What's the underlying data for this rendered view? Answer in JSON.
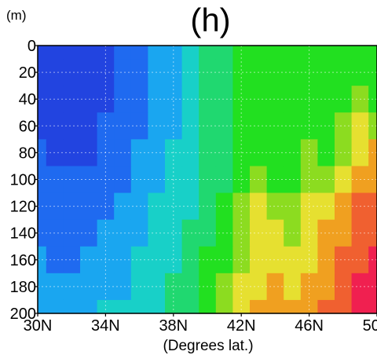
{
  "chart_data": {
    "type": "heatmap",
    "title": "(h)",
    "unit_label": "(m)",
    "xlabel": "(Degrees lat.)",
    "ylabel": "",
    "x_ticks": [
      "30N",
      "34N",
      "38N",
      "42N",
      "46N",
      "50N"
    ],
    "x_tick_values": [
      30,
      34,
      38,
      42,
      46,
      50
    ],
    "y_ticks": [
      "0",
      "20",
      "40",
      "60",
      "80",
      "100",
      "120",
      "140",
      "160",
      "180",
      "200"
    ],
    "y_tick_values": [
      0,
      20,
      40,
      60,
      80,
      100,
      120,
      140,
      160,
      180,
      200
    ],
    "xlim": [
      30,
      50
    ],
    "ylim": [
      0,
      200
    ],
    "y_inverted": true,
    "grid": true,
    "palette": [
      "#2244e0",
      "#1f6af0",
      "#1aa6f0",
      "#18d0c8",
      "#20d870",
      "#22e020",
      "#8cdc20",
      "#e6e030",
      "#f0a020",
      "#f06030",
      "#f02050"
    ],
    "x": [
      30,
      31,
      32,
      33,
      34,
      35,
      36,
      37,
      38,
      39,
      40,
      41,
      42,
      43,
      44,
      45,
      46,
      47,
      48,
      49,
      50
    ],
    "depth": [
      0,
      20,
      40,
      60,
      80,
      100,
      120,
      140,
      160,
      180,
      200
    ],
    "values": [
      [
        0,
        0,
        0,
        0,
        0,
        1,
        1,
        2,
        2,
        3,
        4,
        4,
        5,
        5,
        5,
        5,
        5,
        5,
        5,
        5,
        5
      ],
      [
        0,
        0,
        0,
        0,
        0,
        1,
        1,
        2,
        2,
        3,
        4,
        4,
        5,
        5,
        5,
        5,
        5,
        5,
        5,
        5,
        5
      ],
      [
        0,
        0,
        0,
        0,
        0,
        1,
        1,
        2,
        2,
        3,
        4,
        4,
        5,
        5,
        5,
        5,
        5,
        5,
        5,
        6,
        5
      ],
      [
        0,
        0,
        0,
        0,
        1,
        1,
        1,
        2,
        2,
        3,
        4,
        4,
        5,
        5,
        5,
        5,
        5,
        5,
        6,
        7,
        6
      ],
      [
        1,
        0,
        0,
        0,
        1,
        1,
        2,
        2,
        3,
        3,
        4,
        4,
        5,
        5,
        5,
        5,
        6,
        5,
        6,
        7,
        8
      ],
      [
        1,
        1,
        1,
        1,
        1,
        1,
        2,
        2,
        3,
        3,
        4,
        4,
        5,
        6,
        5,
        5,
        6,
        6,
        7,
        8,
        8
      ],
      [
        1,
        1,
        1,
        1,
        1,
        2,
        2,
        3,
        3,
        3,
        4,
        5,
        6,
        7,
        6,
        6,
        7,
        7,
        8,
        9,
        9
      ],
      [
        1,
        1,
        1,
        1,
        2,
        2,
        2,
        3,
        3,
        4,
        4,
        5,
        6,
        7,
        7,
        6,
        7,
        8,
        8,
        9,
        9
      ],
      [
        2,
        1,
        1,
        2,
        2,
        2,
        3,
        3,
        3,
        4,
        5,
        5,
        6,
        7,
        7,
        7,
        7,
        8,
        9,
        9,
        10
      ],
      [
        2,
        2,
        2,
        2,
        2,
        2,
        3,
        3,
        4,
        4,
        5,
        6,
        7,
        7,
        8,
        7,
        8,
        8,
        9,
        10,
        10
      ],
      [
        2,
        2,
        2,
        2,
        3,
        3,
        3,
        3,
        4,
        4,
        5,
        6,
        7,
        8,
        8,
        8,
        8,
        9,
        9,
        10,
        10
      ]
    ]
  }
}
